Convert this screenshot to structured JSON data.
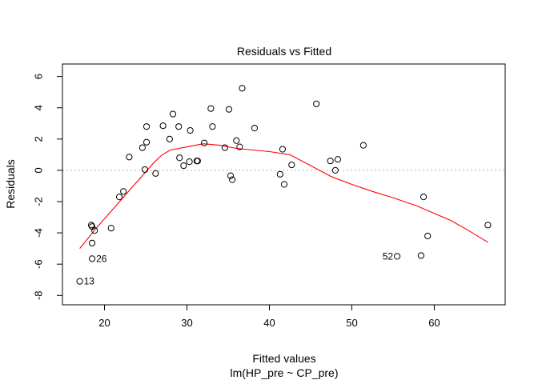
{
  "chart_data": {
    "type": "scatter",
    "title": "Residuals vs Fitted",
    "xlabel": "Fitted values",
    "xlabel_sub": "lm(HP_pre ~ CP_pre)",
    "ylabel": "Residuals",
    "xlim": [
      14.9,
      68.6
    ],
    "ylim": [
      -8.6,
      6.8
    ],
    "xticks": [
      20,
      30,
      40,
      50,
      60
    ],
    "yticks": [
      -8,
      -6,
      -4,
      -2,
      0,
      2,
      4,
      6
    ],
    "reference_line_y": 0,
    "grid": false,
    "colors": {
      "points": "#000000",
      "smooth": "#ff0000",
      "reference": "#bbbbbb"
    },
    "points": [
      [
        17.0,
        -7.1
      ],
      [
        18.5,
        -5.65
      ],
      [
        18.5,
        -4.65
      ],
      [
        18.4,
        -3.5
      ],
      [
        18.5,
        -3.6
      ],
      [
        18.8,
        -3.85
      ],
      [
        20.8,
        -3.7
      ],
      [
        21.8,
        -1.7
      ],
      [
        22.3,
        -1.35
      ],
      [
        23.0,
        0.85
      ],
      [
        24.6,
        1.45
      ],
      [
        24.9,
        0.05
      ],
      [
        25.1,
        1.8
      ],
      [
        25.1,
        2.8
      ],
      [
        26.2,
        -0.2
      ],
      [
        27.1,
        2.85
      ],
      [
        27.9,
        2.0
      ],
      [
        28.3,
        3.6
      ],
      [
        29.0,
        2.8
      ],
      [
        29.1,
        0.8
      ],
      [
        29.6,
        0.3
      ],
      [
        30.3,
        0.55
      ],
      [
        30.4,
        2.55
      ],
      [
        31.2,
        0.6
      ],
      [
        31.3,
        0.6
      ],
      [
        32.1,
        1.75
      ],
      [
        32.9,
        3.95
      ],
      [
        33.1,
        2.8
      ],
      [
        34.6,
        1.45
      ],
      [
        35.1,
        3.9
      ],
      [
        35.3,
        -0.35
      ],
      [
        35.5,
        -0.6
      ],
      [
        36.0,
        1.9
      ],
      [
        36.4,
        1.5
      ],
      [
        36.7,
        5.25
      ],
      [
        38.2,
        2.7
      ],
      [
        41.3,
        -0.25
      ],
      [
        41.6,
        1.35
      ],
      [
        41.8,
        -0.9
      ],
      [
        42.7,
        0.35
      ],
      [
        45.7,
        4.25
      ],
      [
        47.4,
        0.6
      ],
      [
        48.0,
        0.0
      ],
      [
        48.3,
        0.7
      ],
      [
        51.4,
        1.6
      ],
      [
        55.5,
        -5.5
      ],
      [
        58.4,
        -5.45
      ],
      [
        58.7,
        -1.7
      ],
      [
        59.2,
        -4.2
      ],
      [
        66.5,
        -3.5
      ]
    ],
    "smooth": [
      [
        17.0,
        -5.0
      ],
      [
        19.0,
        -3.7
      ],
      [
        21.0,
        -2.5
      ],
      [
        23.0,
        -1.3
      ],
      [
        25.0,
        -0.1
      ],
      [
        26.0,
        0.5
      ],
      [
        27.0,
        1.0
      ],
      [
        28.0,
        1.3
      ],
      [
        30.0,
        1.5
      ],
      [
        32.0,
        1.7
      ],
      [
        34.0,
        1.6
      ],
      [
        36.0,
        1.4
      ],
      [
        38.0,
        1.3
      ],
      [
        40.0,
        1.2
      ],
      [
        42.5,
        1.0
      ],
      [
        45.0,
        0.3
      ],
      [
        47.5,
        -0.4
      ],
      [
        50.0,
        -0.9
      ],
      [
        52.5,
        -1.35
      ],
      [
        55.0,
        -1.75
      ],
      [
        58.0,
        -2.3
      ],
      [
        60.0,
        -2.75
      ],
      [
        62.0,
        -3.2
      ],
      [
        64.0,
        -3.8
      ],
      [
        66.5,
        -4.6
      ]
    ],
    "annotations": [
      {
        "text": "13",
        "x": 17.0,
        "y": -7.1,
        "side": "right"
      },
      {
        "text": "26",
        "x": 18.5,
        "y": -5.65,
        "side": "right"
      },
      {
        "text": "52",
        "x": 55.5,
        "y": -5.5,
        "side": "left"
      }
    ]
  }
}
